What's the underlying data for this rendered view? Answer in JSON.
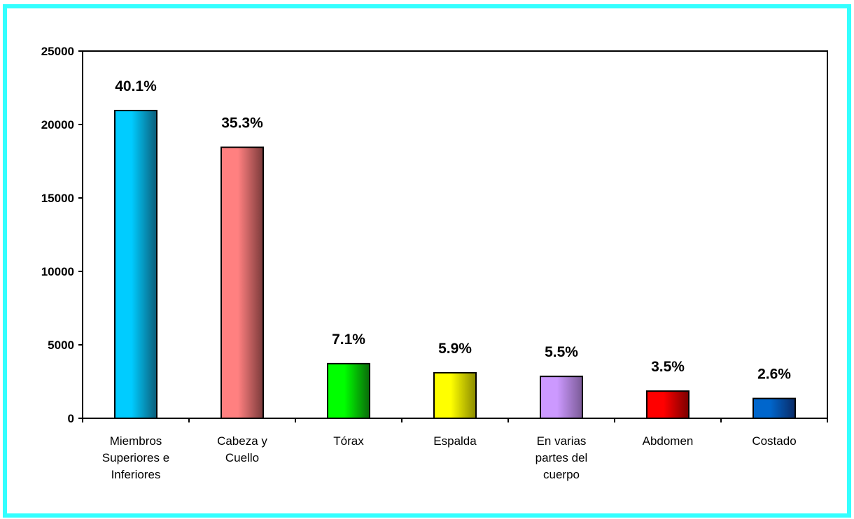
{
  "chart_data": {
    "type": "bar",
    "categories": [
      [
        "Miembros",
        "Superiores e",
        "Inferiores"
      ],
      [
        "Cabeza y",
        "Cuello"
      ],
      [
        "Tórax"
      ],
      [
        "Espalda"
      ],
      [
        "En varias",
        "partes del",
        "cuerpo"
      ],
      [
        "Abdomen"
      ],
      [
        "Costado"
      ]
    ],
    "values": [
      20950,
      18450,
      3720,
      3100,
      2850,
      1850,
      1350
    ],
    "data_labels": [
      "40.1%",
      "35.3%",
      "7.1%",
      "5.9%",
      "5.5%",
      "3.5%",
      "2.6%"
    ],
    "bar_colors": [
      [
        "#0C5C78",
        "#00CCFF"
      ],
      [
        "#7A3A3A",
        "#FF8080"
      ],
      [
        "#0A6A0A",
        "#00FF00"
      ],
      [
        "#8A8A00",
        "#FFFF00"
      ],
      [
        "#7A5A96",
        "#CC99FF"
      ],
      [
        "#7A0000",
        "#FF0000"
      ],
      [
        "#0A2A66",
        "#0066CC"
      ]
    ],
    "ylim": [
      0,
      25000
    ],
    "yticks": [
      0,
      5000,
      10000,
      15000,
      20000,
      25000
    ],
    "title": "",
    "xlabel": "",
    "ylabel": "",
    "grid": false,
    "legend": "none"
  }
}
